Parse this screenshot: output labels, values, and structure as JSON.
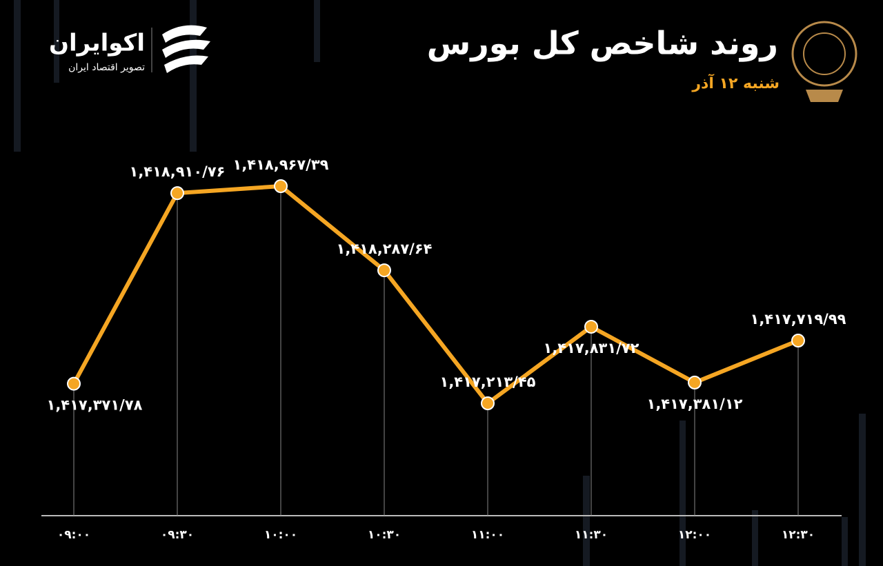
{
  "brand": {
    "name": "اکوایران",
    "tagline": "تصویر اقتصاد ایران"
  },
  "chart_data": {
    "type": "line",
    "title": "روند شاخص کل بورس",
    "subtitle": "شنبه ۱۲ آذر",
    "categories": [
      "۰۹:۰۰",
      "۰۹:۳۰",
      "۱۰:۰۰",
      "۱۰:۳۰",
      "۱۱:۰۰",
      "۱۱:۳۰",
      "۱۲:۰۰",
      "۱۲:۳۰"
    ],
    "values": [
      1417371.78,
      1418910.76,
      1418967.39,
      1418287.64,
      1417213.45,
      1417831.72,
      1417381.12,
      1417719.99
    ],
    "value_labels": [
      "۱,۴۱۷,۳۷۱/۷۸",
      "۱,۴۱۸,۹۱۰/۷۶",
      "۱,۴۱۸,۹۶۷/۳۹",
      "۱,۴۱۸,۲۸۷/۶۴",
      "۱,۴۱۷,۲۱۳/۴۵",
      "۱,۴۱۷,۸۳۱/۷۲",
      "۱,۴۱۷,۳۸۱/۱۲",
      "۱,۴۱۷,۷۱۹/۹۹"
    ],
    "color": "#f5a623"
  }
}
